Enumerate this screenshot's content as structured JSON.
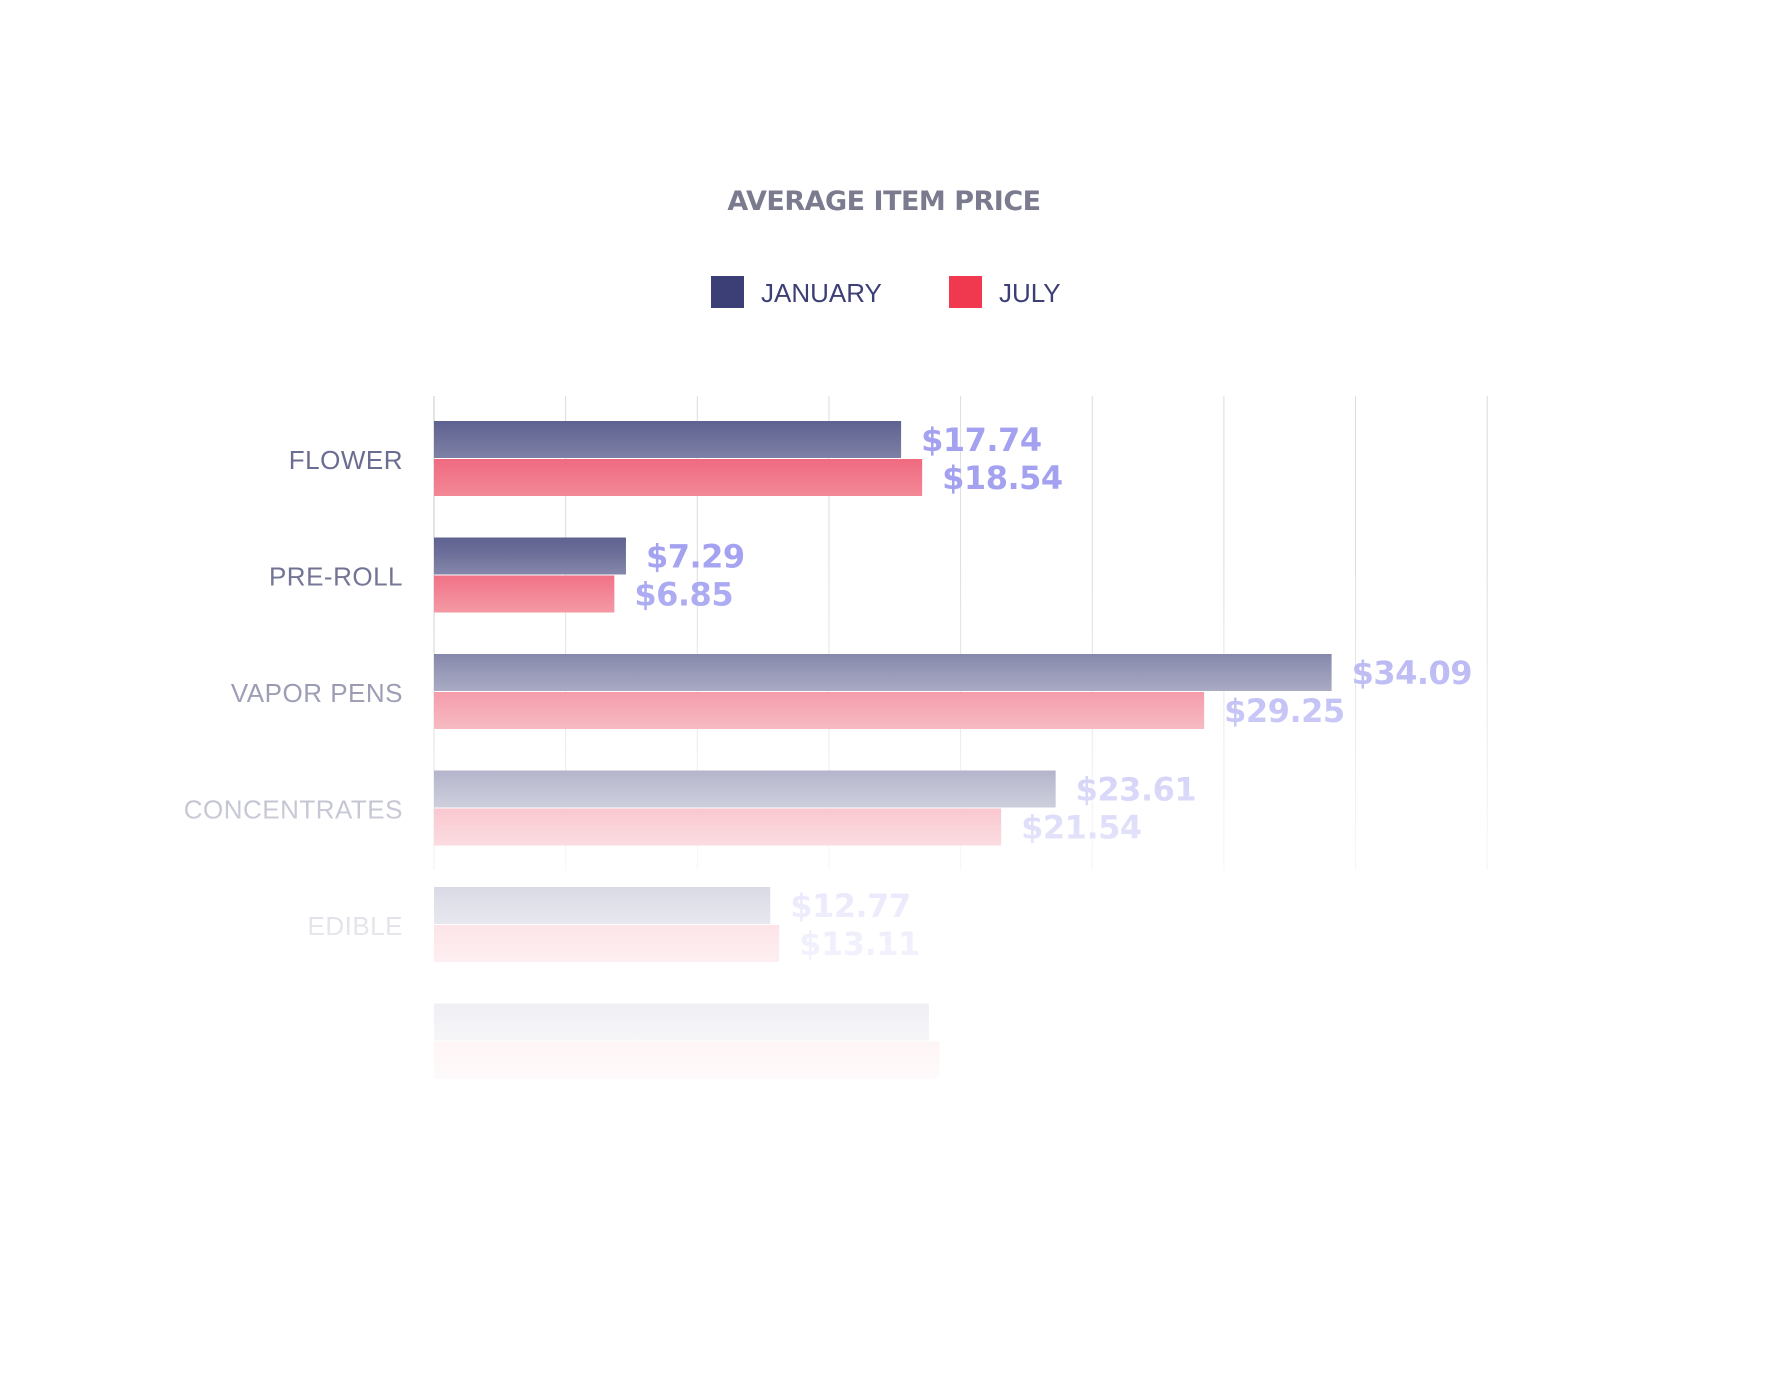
{
  "chart_data": {
    "type": "bar",
    "orientation": "horizontal",
    "title": "AVERAGE ITEM PRICE",
    "xlabel": "",
    "ylabel": "",
    "categories": [
      "FLOWER",
      "PRE-ROLL",
      "VAPOR PENS",
      "CONCENTRATES",
      "EDIBLE",
      ""
    ],
    "series": [
      {
        "name": "JANUARY",
        "color": "#3c3f75",
        "values": [
          17.74,
          7.29,
          34.09,
          23.61,
          12.77,
          18.8
        ]
      },
      {
        "name": "JULY",
        "color": "#f0394f",
        "values": [
          18.54,
          6.85,
          29.25,
          21.54,
          13.11,
          19.2
        ]
      }
    ],
    "value_labels": [
      [
        "$17.74",
        "$18.54"
      ],
      [
        "$7.29",
        "$6.85"
      ],
      [
        "$34.09",
        "$29.25"
      ],
      [
        "$23.61",
        "$21.54"
      ],
      [
        "$12.77",
        "$13.11"
      ],
      [
        "",
        ""
      ]
    ],
    "xlim": [
      0,
      40
    ],
    "grid": true,
    "legend_position": "top-center",
    "fade_out_toward_bottom": true,
    "colors": {
      "title": "#7b7b8f",
      "category_label": "#6b6d90",
      "value_label": "#a4a2f0",
      "grid": "#dcdcdc"
    }
  }
}
